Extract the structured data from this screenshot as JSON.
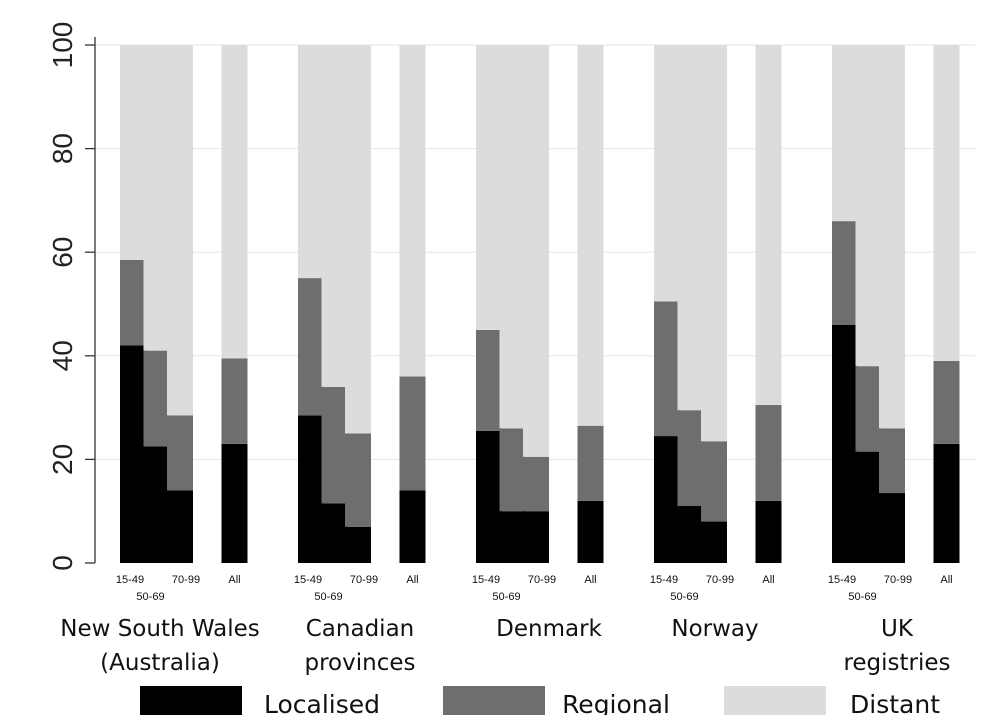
{
  "chart_data": {
    "type": "bar",
    "stacked": true,
    "ylim": [
      0,
      100
    ],
    "yticks": [
      0,
      20,
      40,
      60,
      80,
      100
    ],
    "grid": true,
    "legend_position": "bottom",
    "series": [
      {
        "name": "Localised",
        "color": "#000000"
      },
      {
        "name": "Regional",
        "color": "#6e6e6e"
      },
      {
        "name": "Distant",
        "color": "#dcdcdc"
      }
    ],
    "groups": [
      {
        "name": [
          "New South Wales",
          "(Australia)"
        ],
        "bars": [
          {
            "label": "15-49",
            "values": [
              42,
              16.5,
              41.5
            ]
          },
          {
            "label": "50-69",
            "values": [
              22.5,
              18.5,
              59
            ]
          },
          {
            "label": "70-99",
            "values": [
              14,
              14.5,
              71.5
            ]
          },
          {
            "label": "All",
            "values": [
              23,
              16.5,
              60.5
            ]
          }
        ]
      },
      {
        "name": [
          "Canadian",
          "provinces"
        ],
        "bars": [
          {
            "label": "15-49",
            "values": [
              28.5,
              26.5,
              45
            ]
          },
          {
            "label": "50-69",
            "values": [
              11.5,
              22.5,
              66
            ]
          },
          {
            "label": "70-99",
            "values": [
              7,
              18,
              75
            ]
          },
          {
            "label": "All",
            "values": [
              14,
              22,
              64
            ]
          }
        ]
      },
      {
        "name": [
          "Denmark"
        ],
        "bars": [
          {
            "label": "15-49",
            "values": [
              25.5,
              19.5,
              55
            ]
          },
          {
            "label": "50-69",
            "values": [
              10,
              16,
              74
            ]
          },
          {
            "label": "70-99",
            "values": [
              10,
              10.5,
              79.5
            ]
          },
          {
            "label": "All",
            "values": [
              12,
              14.5,
              73.5
            ]
          }
        ]
      },
      {
        "name": [
          "Norway"
        ],
        "bars": [
          {
            "label": "15-49",
            "values": [
              24.5,
              26,
              49.5
            ]
          },
          {
            "label": "50-69",
            "values": [
              11,
              18.5,
              70.5
            ]
          },
          {
            "label": "70-99",
            "values": [
              8,
              15.5,
              76.5
            ]
          },
          {
            "label": "All",
            "values": [
              12,
              18.5,
              69.5
            ]
          }
        ]
      },
      {
        "name": [
          "UK",
          "registries"
        ],
        "bars": [
          {
            "label": "15-49",
            "values": [
              46,
              20,
              34
            ]
          },
          {
            "label": "50-69",
            "values": [
              21.5,
              16.5,
              62
            ]
          },
          {
            "label": "70-99",
            "values": [
              13.5,
              12.5,
              74
            ]
          },
          {
            "label": "All",
            "values": [
              23,
              16,
              61
            ]
          }
        ]
      }
    ]
  }
}
